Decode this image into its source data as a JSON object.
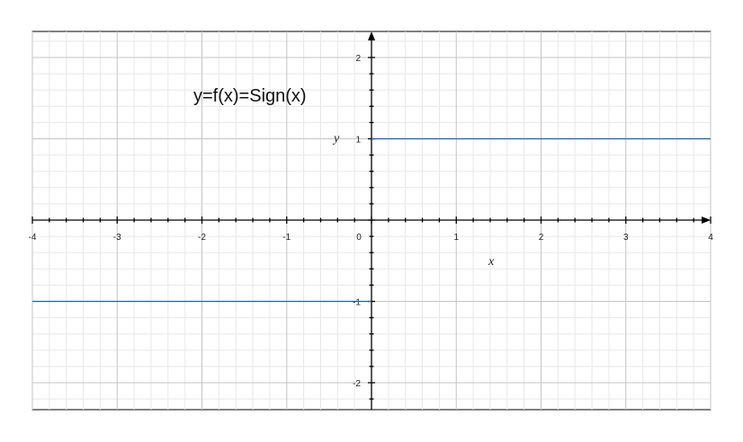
{
  "chart_data": {
    "type": "line",
    "title": "y=f(x)=Sign(x)",
    "xlabel": "x",
    "ylabel": "y",
    "xlim": [
      -4,
      4
    ],
    "ylim": [
      -2.33,
      2.33
    ],
    "grid": true,
    "x_ticks": [
      -4,
      -3,
      -2,
      -1,
      0,
      1,
      2,
      3,
      4
    ],
    "x_tick_labels": [
      "-4",
      "-3",
      "-2",
      "-1",
      "0",
      "1",
      "2",
      "3",
      "4"
    ],
    "y_ticks": [
      -2,
      -1,
      1,
      2
    ],
    "y_tick_labels": [
      "-2",
      "-1",
      "1",
      "2"
    ],
    "series": [
      {
        "segments": [
          {
            "x": [
              -4,
              0
            ],
            "y": [
              -1,
              -1
            ]
          },
          {
            "x": [
              0,
              4
            ],
            "y": [
              1,
              1
            ]
          }
        ],
        "color": "#1f5fa8"
      }
    ]
  }
}
